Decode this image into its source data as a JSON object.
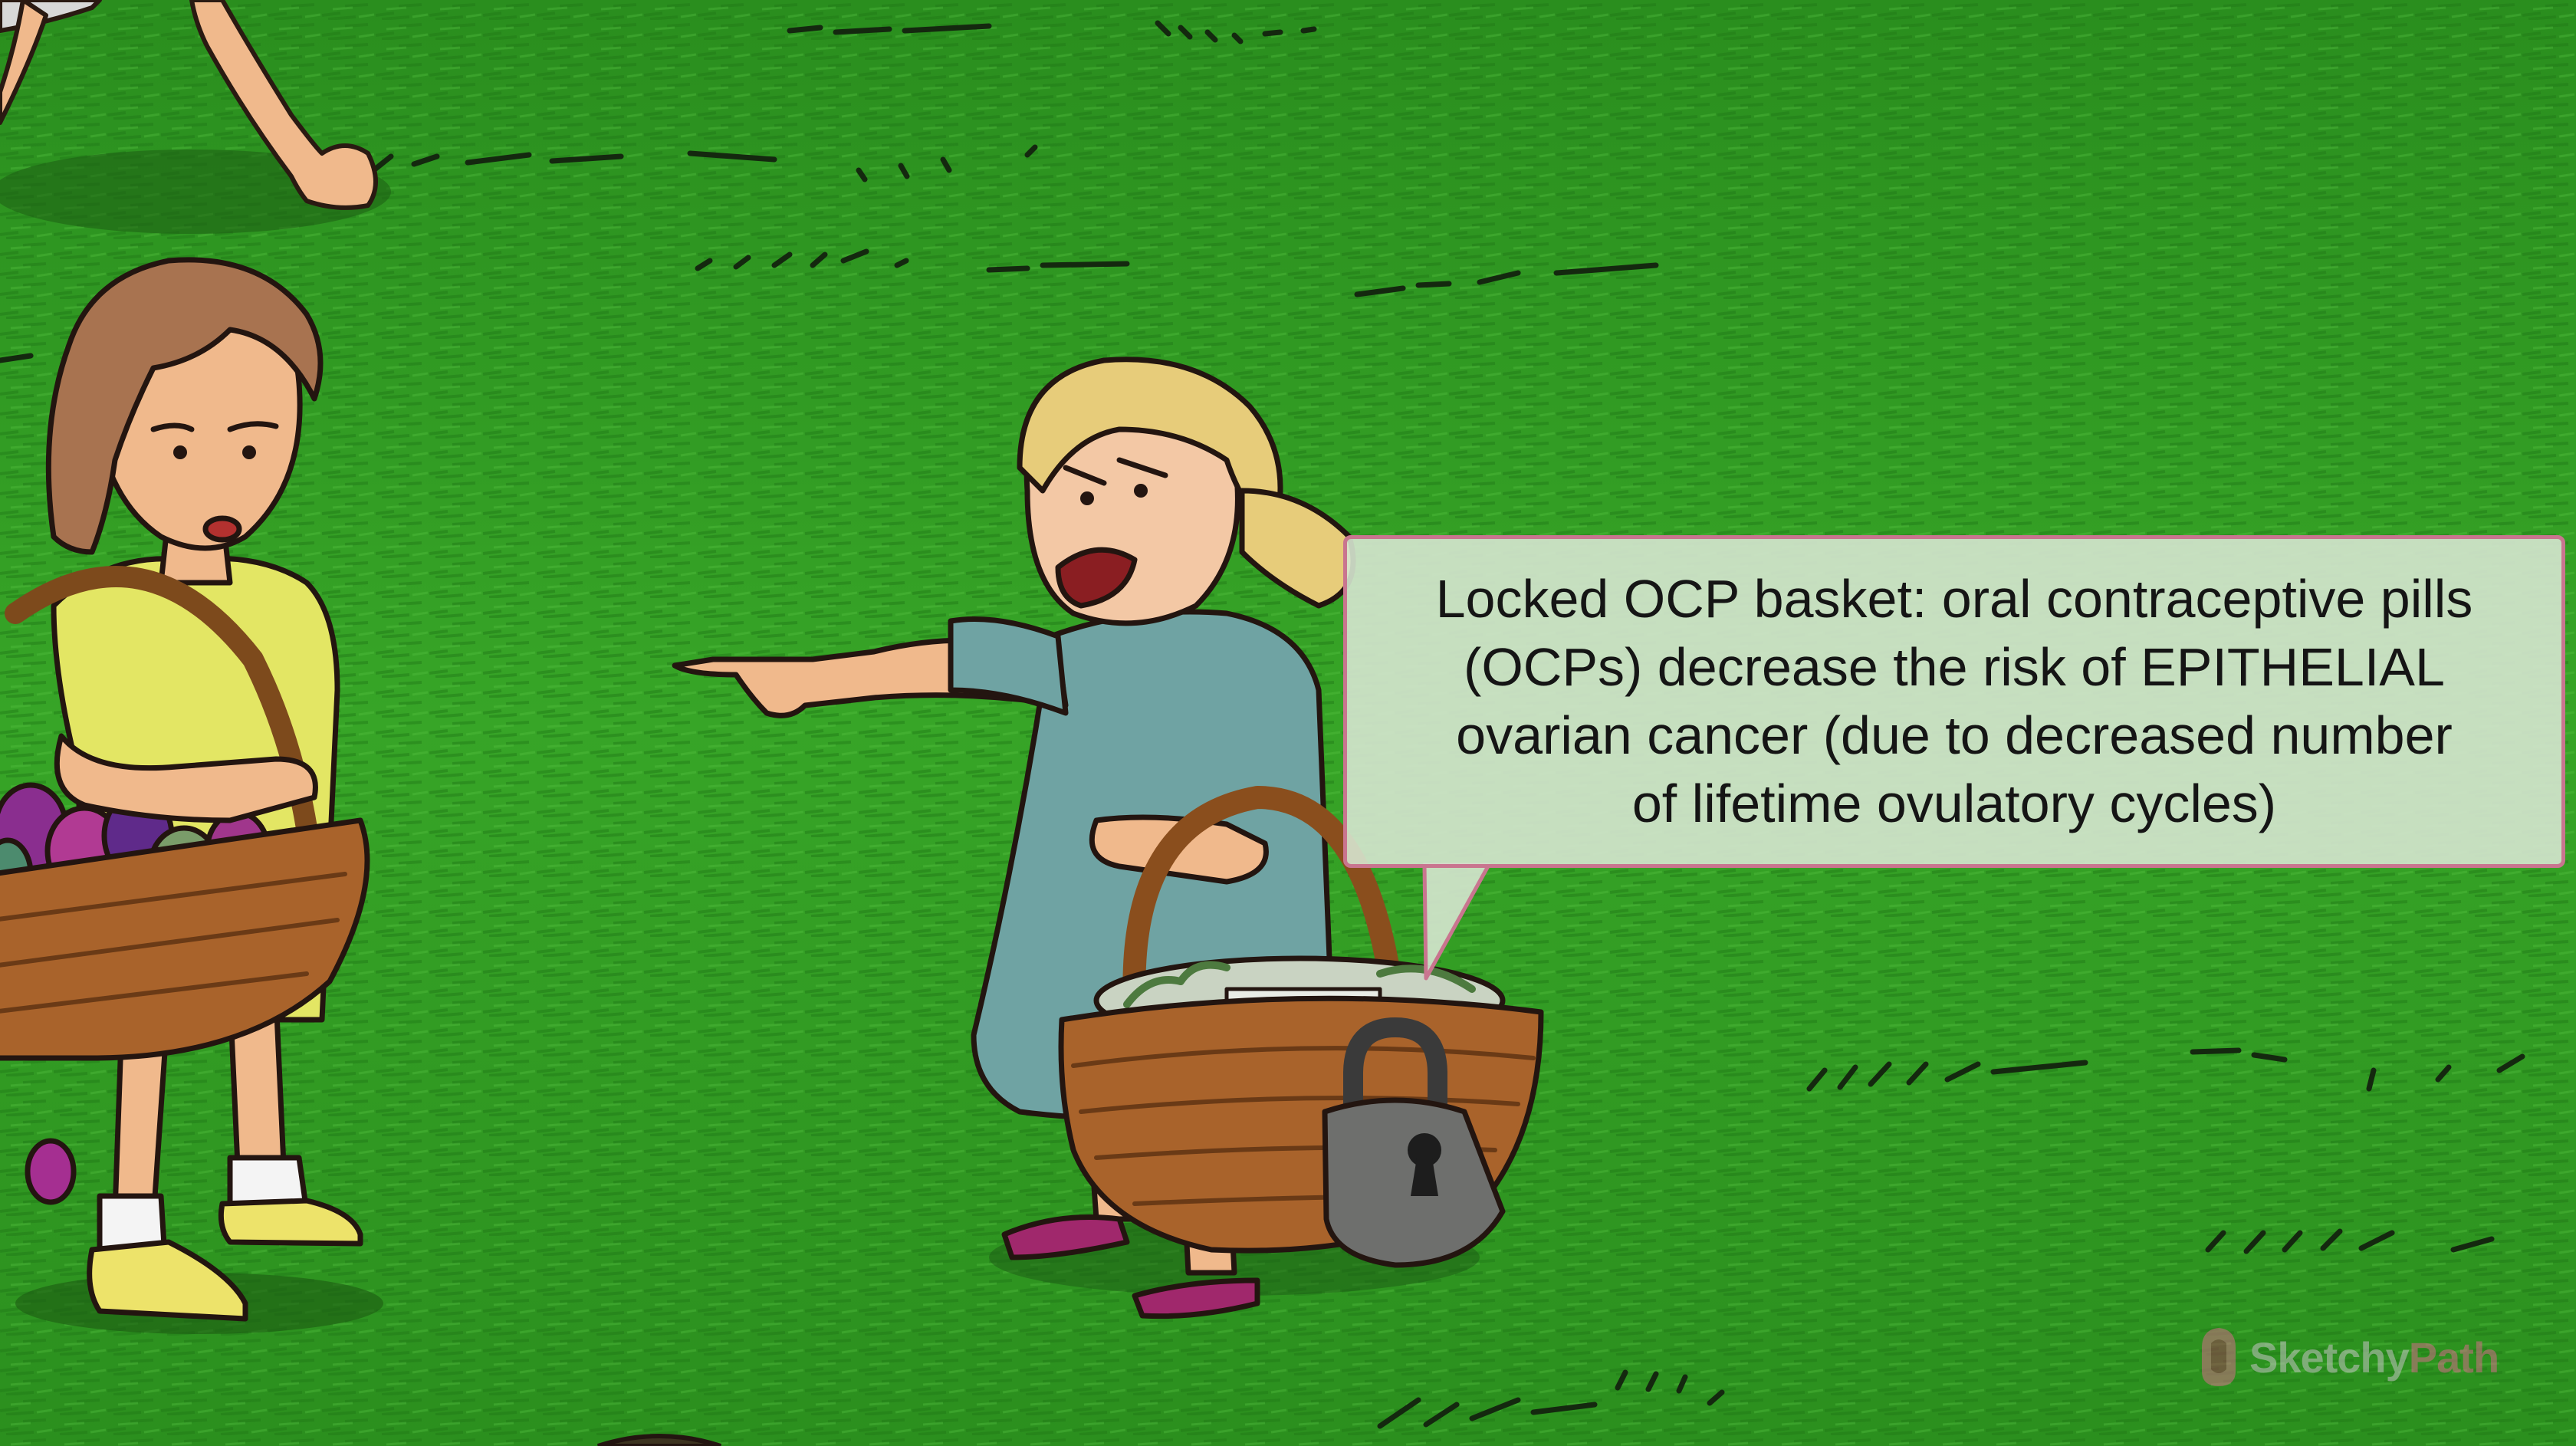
{
  "callout": {
    "lines": [
      "Locked OCP basket: oral contraceptive pills",
      "(OCPs) decrease the risk of EPITHELIAL",
      "ovarian cancer (due to decreased number",
      "of lifetime ovulatory cycles)"
    ]
  },
  "watermark": {
    "brand_part1": "Sketchy",
    "brand_part2": "Path"
  },
  "colors": {
    "grass": "#2f9a22",
    "callout_border": "#c9758f",
    "watermark_accent": "#d26d88"
  }
}
